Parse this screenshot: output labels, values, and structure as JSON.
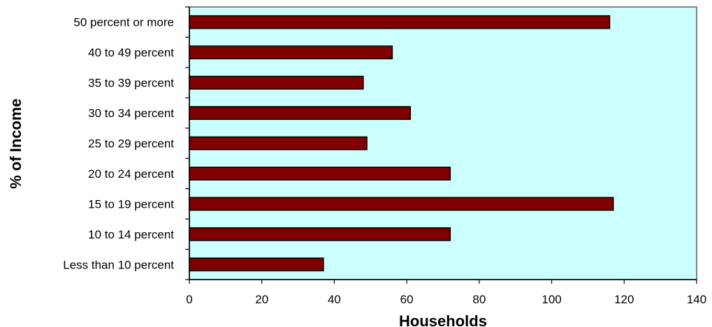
{
  "chart_data": {
    "type": "bar",
    "orientation": "horizontal",
    "categories": [
      "50 percent or more",
      "40 to 49 percent",
      "35 to 39 percent",
      "30 to 34 percent",
      "25 to 29 percent",
      "20 to 24 percent",
      "15 to 19 percent",
      "10 to 14 percent",
      "Less than 10 percent"
    ],
    "values": [
      116,
      56,
      48,
      61,
      49,
      72,
      117,
      72,
      37
    ],
    "xlabel": "Households",
    "ylabel": "% of Income",
    "xlim": [
      0,
      140
    ],
    "xticks": [
      0,
      20,
      40,
      60,
      80,
      100,
      120,
      140
    ],
    "grid": false,
    "legend": "none",
    "colors": {
      "bar_fill": "#800000",
      "bar_stroke": "#000000",
      "plot_background": "#ccffff",
      "plot_border": "#808080"
    }
  }
}
